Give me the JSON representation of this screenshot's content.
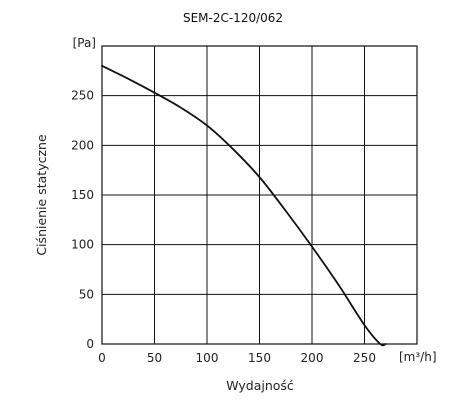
{
  "chart_data": {
    "type": "line",
    "title": "SEM-2C-120/062",
    "xlabel": "Wydajność",
    "ylabel": "Ciśnienie statyczne",
    "x_unit": "[m³/h]",
    "y_unit": "[Pa]",
    "xlim": [
      0,
      300
    ],
    "ylim": [
      0,
      300
    ],
    "x_ticks": [
      0,
      50,
      100,
      150,
      200,
      250
    ],
    "y_ticks": [
      0,
      50,
      100,
      150,
      200,
      250
    ],
    "grid": true,
    "series": [
      {
        "x": [
          0,
          25,
          50,
          75,
          100,
          125,
          150,
          175,
          200,
          225,
          250,
          265,
          270
        ],
        "y": [
          280,
          267,
          253,
          238,
          220,
          196,
          168,
          134,
          98,
          60,
          19,
          0,
          0
        ]
      }
    ]
  }
}
